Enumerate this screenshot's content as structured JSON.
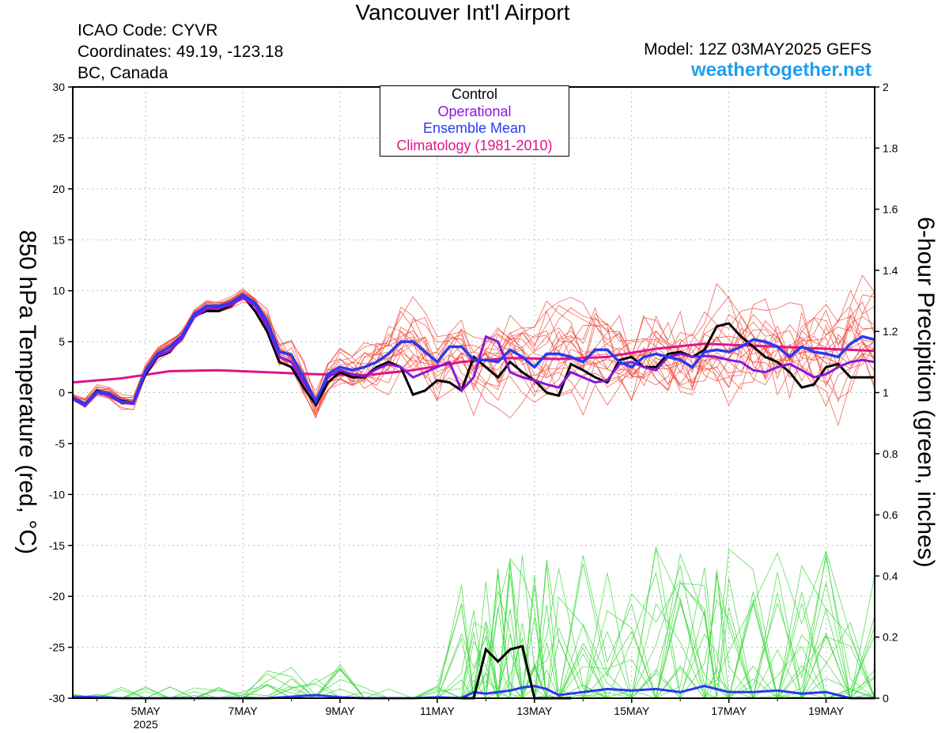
{
  "header": {
    "title": "Vancouver Int'l Airport",
    "icao": "ICAO Code: CYVR",
    "coordinates": "Coordinates: 49.19, -123.18",
    "region": "BC, Canada",
    "model": "Model: 12Z 03MAY2025 GEFS",
    "site": "weathertogether.net"
  },
  "colors": {
    "control": "#000000",
    "operational": "#8a16d8",
    "mean": "#2a3af0",
    "climatology": "#e0148c",
    "members_temp": "#f04a3a",
    "members_precip": "#3ad83a",
    "site": "#1e9ef0"
  },
  "chart_data": {
    "type": "line",
    "title": "Vancouver Int'l Airport",
    "ylabel": "850 hPa Temperature (red, °C)",
    "y2label": "6-hour Precipition (green, inches)",
    "ylim": [
      -30,
      30
    ],
    "y2lim": [
      0,
      2
    ],
    "yticks": [
      30,
      25,
      20,
      15,
      10,
      5,
      0,
      -5,
      -10,
      -15,
      -20,
      -25,
      -30
    ],
    "y2ticks": [
      2,
      1.8,
      1.6,
      1.4,
      1.2,
      1,
      0.8,
      0.6,
      0.4,
      0.2,
      0
    ],
    "xlim": [
      0,
      16.5
    ],
    "xticks": [
      {
        "x": 1.5,
        "label": "5MAY",
        "sub": "2025"
      },
      {
        "x": 3.5,
        "label": "7MAY"
      },
      {
        "x": 5.5,
        "label": "9MAY"
      },
      {
        "x": 7.5,
        "label": "11MAY"
      },
      {
        "x": 9.5,
        "label": "13MAY"
      },
      {
        "x": 11.5,
        "label": "15MAY"
      },
      {
        "x": 13.5,
        "label": "17MAY"
      },
      {
        "x": 15.5,
        "label": "19MAY"
      }
    ],
    "legend": {
      "placement": "top-center",
      "items": [
        "Control",
        "Operational",
        "Ensemble Mean",
        "Climatology (1981-2010)"
      ]
    },
    "climatology": {
      "x": [
        0,
        1,
        2,
        3,
        4,
        5,
        6,
        7,
        8,
        9,
        10,
        11,
        12,
        13,
        14,
        15,
        16.5
      ],
      "y": [
        1.0,
        1.4,
        2.1,
        2.2,
        2.0,
        1.8,
        1.7,
        2.2,
        3.0,
        3.4,
        3.3,
        3.5,
        4.3,
        4.8,
        4.6,
        4.4,
        4.1
      ]
    },
    "series": [
      {
        "name": "Control",
        "x": [
          0,
          0.25,
          0.5,
          0.75,
          1.0,
          1.25,
          1.5,
          1.75,
          2.0,
          2.25,
          2.5,
          2.75,
          3.0,
          3.25,
          3.5,
          3.75,
          4.0,
          4.25,
          4.5,
          4.75,
          5.0,
          5.25,
          5.5,
          5.75,
          6.0,
          6.25,
          6.5,
          6.75,
          7.0,
          7.25,
          7.5,
          7.75,
          8.0,
          8.25,
          8.5,
          8.75,
          9.0,
          9.25,
          9.5,
          9.75,
          10.0,
          10.25,
          10.5,
          10.75,
          11.0,
          11.25,
          11.5,
          11.75,
          12.0,
          12.25,
          12.5,
          12.75,
          13.0,
          13.25,
          13.5,
          13.75,
          14.0,
          14.25,
          14.5,
          14.75,
          15.0,
          15.25,
          15.5,
          15.75,
          16.0,
          16.25,
          16.5
        ],
        "y": [
          -0.5,
          -1.2,
          0.2,
          -0.2,
          -0.8,
          -1.0,
          1.8,
          3.5,
          4.0,
          5.5,
          7.5,
          8.0,
          8.0,
          8.5,
          9.5,
          8.0,
          6.0,
          3.0,
          2.5,
          0.5,
          -1.2,
          1.0,
          2.0,
          1.5,
          1.5,
          2.5,
          3.0,
          2.5,
          -0.2,
          0.2,
          1.2,
          1.0,
          0.2,
          3.5,
          2.5,
          1.5,
          3.0,
          2.0,
          1.2,
          0.0,
          -0.3,
          2.8,
          2.2,
          1.5,
          1.0,
          3.2,
          3.5,
          2.5,
          2.5,
          3.8,
          4.0,
          3.5,
          4.2,
          6.5,
          6.8,
          5.5,
          4.5,
          3.5,
          3.0,
          2.0,
          0.5,
          0.8,
          2.5,
          2.8,
          1.5,
          1.5,
          1.5
        ]
      },
      {
        "name": "Operational",
        "x": [
          0,
          0.25,
          0.5,
          0.75,
          1.0,
          1.25,
          1.5,
          1.75,
          2.0,
          2.25,
          2.5,
          2.75,
          3.0,
          3.25,
          3.5,
          3.75,
          4.0,
          4.25,
          4.5,
          4.75,
          5.0,
          5.25,
          5.5,
          5.75,
          6.0,
          6.25,
          6.5,
          6.75,
          7.0,
          7.25,
          7.5,
          7.75,
          8.0,
          8.25,
          8.5,
          8.75,
          9.0,
          9.25,
          9.5,
          9.75,
          10.0,
          10.25,
          10.5,
          10.75,
          11.0,
          11.25,
          11.5,
          11.75,
          12.0,
          12.25,
          12.5,
          12.75,
          13.0,
          13.25,
          13.5,
          13.75,
          14.0,
          14.25,
          14.5,
          14.75,
          15.0,
          15.25,
          15.5,
          15.75,
          16.0,
          16.25,
          16.5
        ],
        "y": [
          -0.6,
          -1.3,
          0.0,
          -0.3,
          -1.0,
          -1.1,
          2.0,
          3.6,
          4.1,
          5.3,
          7.4,
          8.2,
          8.3,
          8.6,
          9.3,
          8.5,
          6.5,
          3.5,
          3.0,
          1.0,
          -0.8,
          1.5,
          2.2,
          1.8,
          1.6,
          2.3,
          2.8,
          2.5,
          1.5,
          2.0,
          2.5,
          3.0,
          0.2,
          1.5,
          5.5,
          5.0,
          2.0,
          1.5,
          1.2,
          0.8,
          0.5,
          2.0,
          1.5,
          1.0,
          1.2,
          2.8,
          3.0,
          2.5,
          2.2,
          3.5,
          3.8,
          3.5,
          3.6,
          3.5,
          3.2,
          3.0,
          2.2,
          2.0,
          2.5,
          2.8,
          2.2,
          1.5,
          1.8,
          2.5,
          3.0,
          3.2,
          3.0
        ]
      },
      {
        "name": "Ensemble Mean",
        "x": [
          0,
          0.25,
          0.5,
          0.75,
          1.0,
          1.25,
          1.5,
          1.75,
          2.0,
          2.25,
          2.5,
          2.75,
          3.0,
          3.25,
          3.5,
          3.75,
          4.0,
          4.25,
          4.5,
          4.75,
          5.0,
          5.25,
          5.5,
          5.75,
          6.0,
          6.25,
          6.5,
          6.75,
          7.0,
          7.25,
          7.5,
          7.75,
          8.0,
          8.25,
          8.5,
          8.75,
          9.0,
          9.25,
          9.5,
          9.75,
          10.0,
          10.25,
          10.5,
          10.75,
          11.0,
          11.25,
          11.5,
          11.75,
          12.0,
          12.25,
          12.5,
          12.75,
          13.0,
          13.25,
          13.5,
          13.75,
          14.0,
          14.25,
          14.5,
          14.75,
          15.0,
          15.25,
          15.5,
          15.75,
          16.0,
          16.25,
          16.5
        ],
        "y": [
          -0.5,
          -1.1,
          0.1,
          -0.1,
          -0.9,
          -1.0,
          2.2,
          3.8,
          4.5,
          5.6,
          7.7,
          8.5,
          8.5,
          8.8,
          9.6,
          8.8,
          7.0,
          4.0,
          3.7,
          1.5,
          -0.9,
          1.8,
          2.5,
          2.2,
          2.5,
          3.0,
          3.8,
          5.0,
          5.0,
          4.0,
          3.0,
          4.5,
          4.5,
          3.2,
          3.2,
          3.0,
          4.2,
          3.5,
          2.5,
          3.8,
          3.8,
          3.5,
          3.0,
          4.2,
          4.2,
          3.0,
          2.5,
          3.5,
          3.8,
          3.5,
          3.2,
          2.5,
          4.0,
          4.2,
          4.0,
          4.5,
          5.2,
          5.0,
          4.5,
          3.5,
          4.5,
          4.0,
          3.8,
          3.5,
          4.8,
          5.5,
          5.2
        ]
      }
    ],
    "members_temp_count": 20,
    "precip_mean": {
      "x": [
        0,
        0.5,
        1,
        1.5,
        2,
        2.5,
        3,
        3.5,
        4,
        4.5,
        5,
        5.5,
        6,
        6.5,
        7,
        7.5,
        8,
        8.25,
        8.5,
        8.75,
        9,
        9.25,
        9.5,
        9.75,
        10,
        10.5,
        11,
        11.5,
        12,
        12.5,
        13,
        13.25,
        13.5,
        14,
        14.5,
        15,
        15.5,
        16,
        16.5
      ],
      "y": [
        0.005,
        0.003,
        0.0,
        0.0,
        0.0,
        0.0,
        0.0,
        0.0,
        0.0,
        0.005,
        0.01,
        0.003,
        0.0,
        0.0,
        0.0,
        0.003,
        0.0,
        0.02,
        0.015,
        0.02,
        0.025,
        0.035,
        0.04,
        0.03,
        0.01,
        0.02,
        0.03,
        0.025,
        0.03,
        0.02,
        0.04,
        0.03,
        0.02,
        0.02,
        0.025,
        0.015,
        0.02,
        0.0,
        0.0
      ]
    },
    "precip_control": {
      "x": [
        8.0,
        8.25,
        8.5,
        8.75,
        9.0,
        9.25,
        9.5,
        9.75,
        10.0,
        10.25
      ],
      "y": [
        0.0,
        0.0,
        0.16,
        0.12,
        0.16,
        0.17,
        0.0,
        0.0,
        0.0,
        0.0
      ]
    },
    "precip_members_max": 0.5
  }
}
